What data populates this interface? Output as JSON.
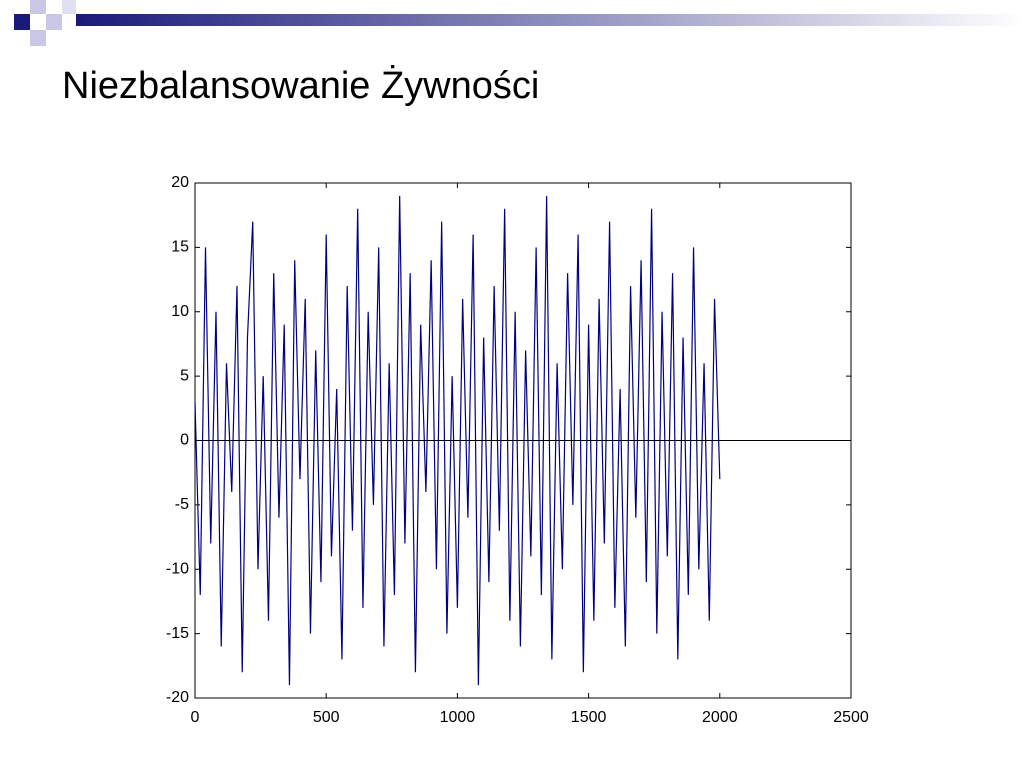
{
  "chart_data": {
    "type": "line",
    "title": "Niezbalansowanie Żywności",
    "x": [
      0,
      20,
      40,
      60,
      80,
      100,
      120,
      140,
      160,
      180,
      200,
      220,
      240,
      260,
      280,
      300,
      320,
      340,
      360,
      380,
      400,
      420,
      440,
      460,
      480,
      500,
      520,
      540,
      560,
      580,
      600,
      620,
      640,
      660,
      680,
      700,
      720,
      740,
      760,
      780,
      800,
      820,
      840,
      860,
      880,
      900,
      920,
      940,
      960,
      980,
      1000,
      1020,
      1040,
      1060,
      1080,
      1100,
      1120,
      1140,
      1160,
      1180,
      1200,
      1220,
      1240,
      1260,
      1280,
      1300,
      1320,
      1340,
      1360,
      1380,
      1400,
      1420,
      1440,
      1460,
      1480,
      1500,
      1520,
      1540,
      1560,
      1580,
      1600,
      1620,
      1640,
      1660,
      1680,
      1700,
      1720,
      1740,
      1760,
      1780,
      1800,
      1820,
      1840,
      1860,
      1880,
      1900,
      1920,
      1940,
      1960,
      1980,
      2000
    ],
    "values": [
      3,
      -12,
      15,
      -8,
      10,
      -16,
      6,
      -4,
      12,
      -18,
      8,
      17,
      -10,
      5,
      -14,
      13,
      -6,
      9,
      -19,
      14,
      -3,
      11,
      -15,
      7,
      -11,
      16,
      -9,
      4,
      -17,
      12,
      -7,
      18,
      -13,
      10,
      -5,
      15,
      -16,
      6,
      -12,
      19,
      -8,
      13,
      -18,
      9,
      -4,
      14,
      -10,
      17,
      -15,
      5,
      -13,
      11,
      -6,
      16,
      -19,
      8,
      -11,
      12,
      -7,
      18,
      -14,
      10,
      -16,
      7,
      -9,
      15,
      -12,
      19,
      -17,
      6,
      -10,
      13,
      -5,
      16,
      -18,
      9,
      -14,
      11,
      -8,
      17,
      -13,
      4,
      -16,
      12,
      -6,
      14,
      -11,
      18,
      -15,
      10,
      -9,
      13,
      -17,
      8,
      -12,
      15,
      -10,
      6,
      -14,
      11,
      -3
    ],
    "color": "#000080",
    "xlim": [
      0,
      2500
    ],
    "xticks": [
      0,
      500,
      1000,
      1500,
      2000,
      2500
    ],
    "ylim": [
      -20,
      20
    ],
    "yticks": [
      -20,
      -15,
      -10,
      -5,
      0,
      5,
      10,
      15,
      20
    ]
  }
}
